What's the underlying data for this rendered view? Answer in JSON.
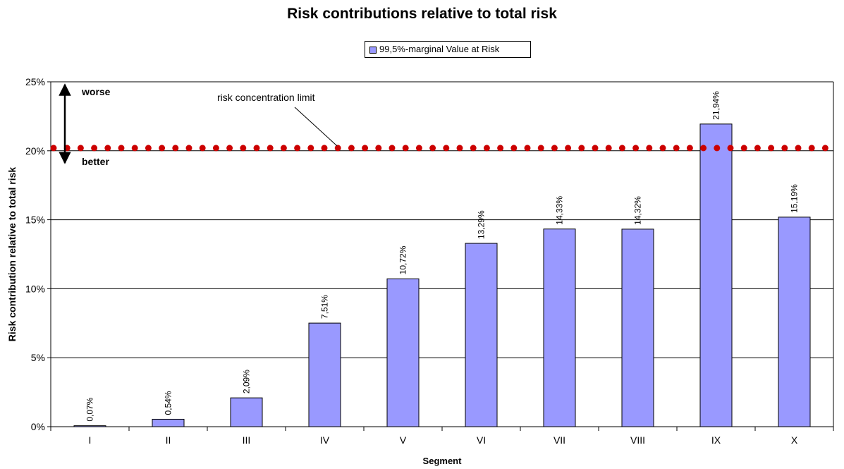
{
  "chart_data": {
    "type": "bar",
    "title": "Risk contributions relative to total risk",
    "xlabel": "Segment",
    "ylabel": "Risk contribution relative to total risk",
    "categories": [
      "I",
      "II",
      "III",
      "IV",
      "V",
      "VI",
      "VII",
      "VIII",
      "IX",
      "X"
    ],
    "series": [
      {
        "name": "99,5%-marginal Value at Risk",
        "values": [
          0.07,
          0.54,
          2.09,
          7.51,
          10.72,
          13.29,
          14.33,
          14.32,
          21.94,
          15.19
        ],
        "labels": [
          "0,07%",
          "0,54%",
          "2,09%",
          "7,51%",
          "10,72%",
          "13,29%",
          "14,33%",
          "14,32%",
          "21,94%",
          "15,19%"
        ]
      }
    ],
    "ylim": [
      0,
      25
    ],
    "yticks": [
      0,
      5,
      10,
      15,
      20,
      25
    ],
    "ytick_labels": [
      "0%",
      "5%",
      "10%",
      "15%",
      "20%",
      "25%"
    ],
    "grid": true,
    "legend_position": "top-center",
    "limit_line": {
      "value": 20.2,
      "label": "risk concentration  limit"
    },
    "annotations": {
      "worse": "worse",
      "better": "better"
    },
    "colors": {
      "bar": "#9999ff",
      "limit": "#cc0000",
      "grid": "#000000"
    }
  }
}
